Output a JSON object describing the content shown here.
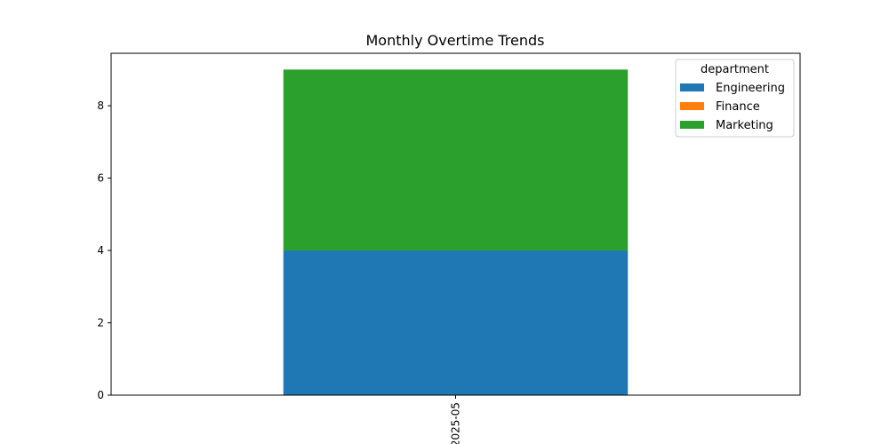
{
  "chart_data": {
    "type": "bar",
    "stacked": true,
    "title": "Monthly Overtime Trends",
    "xlabel": "",
    "ylabel": "",
    "categories": [
      "2025-05"
    ],
    "series": [
      {
        "name": "Engineering",
        "color": "#1f77b4",
        "values": [
          4
        ]
      },
      {
        "name": "Finance",
        "color": "#ff7f0e",
        "values": [
          0
        ]
      },
      {
        "name": "Marketing",
        "color": "#2ca02c",
        "values": [
          5
        ]
      }
    ],
    "ylim": [
      0,
      9.45
    ],
    "yticks": [
      0,
      2,
      4,
      6,
      8
    ],
    "grid": false,
    "legend": {
      "title": "department",
      "placement": "top-right"
    }
  }
}
